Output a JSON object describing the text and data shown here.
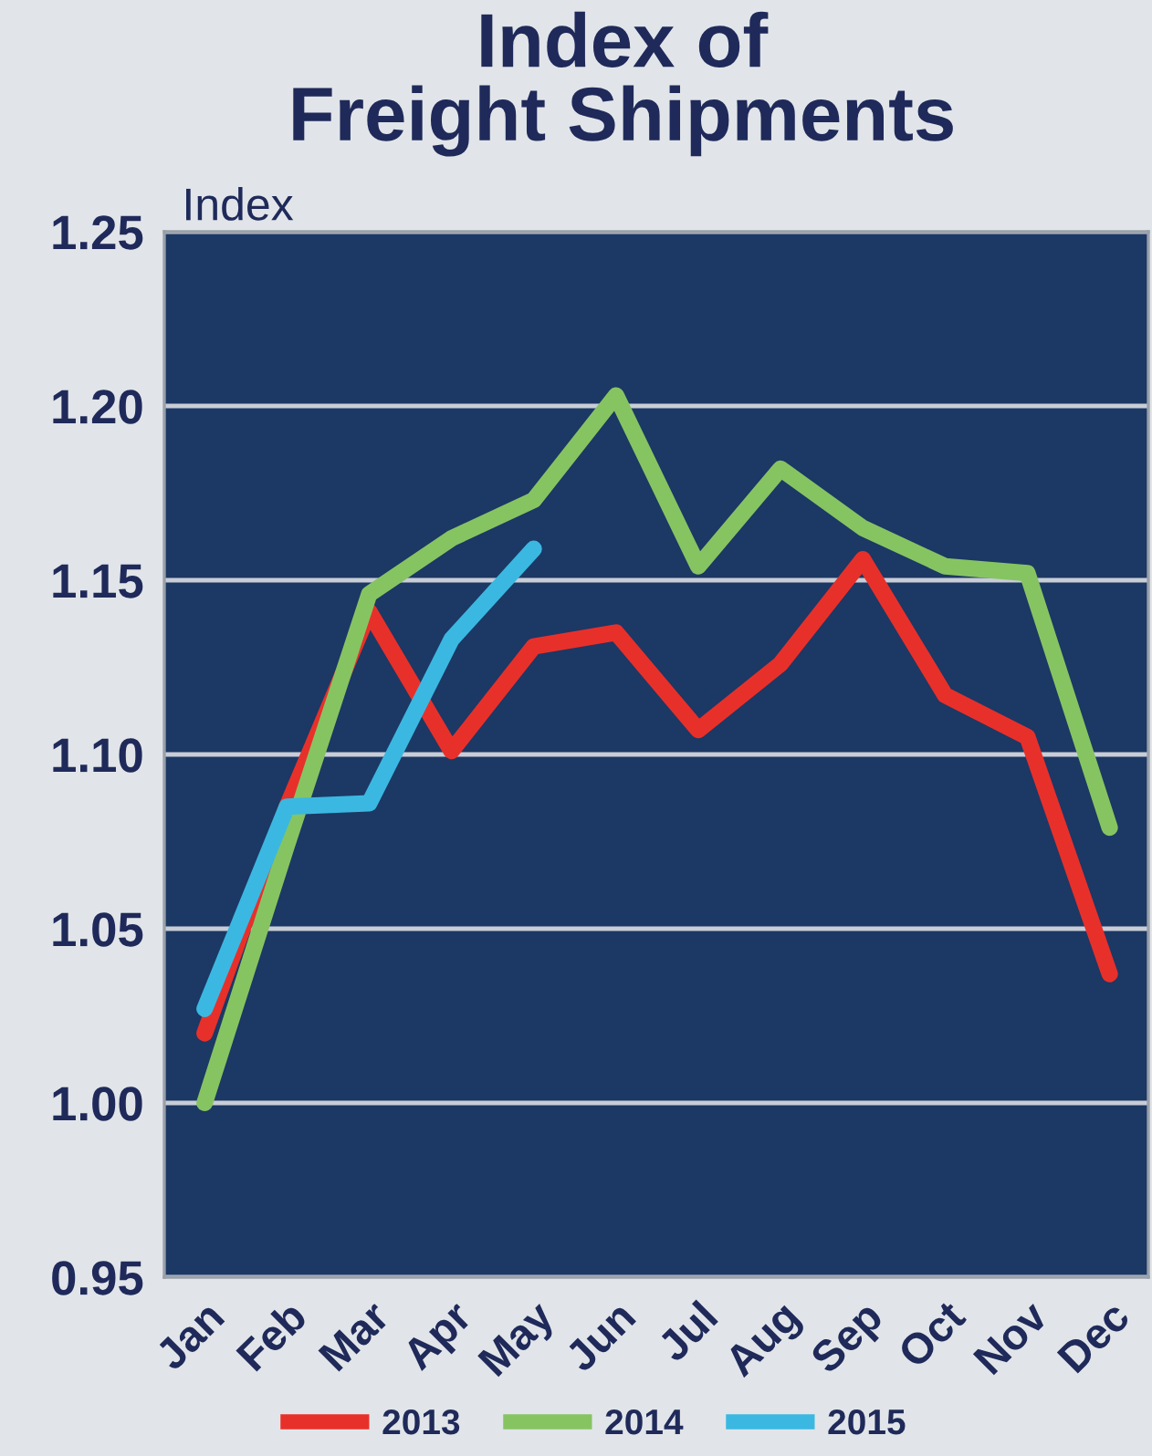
{
  "chart_data": {
    "type": "line",
    "title": "Index of\nFreight Shipments",
    "ylabel": "Index",
    "categories": [
      "Jan",
      "Feb",
      "Mar",
      "Apr",
      "May",
      "Jun",
      "Jul",
      "Aug",
      "Sep",
      "Oct",
      "Nov",
      "Dec"
    ],
    "series": [
      {
        "name": "2013",
        "color": "#e8302a",
        "values": [
          1.02,
          1.085,
          1.141,
          1.101,
          1.131,
          1.135,
          1.107,
          1.126,
          1.156,
          1.117,
          1.105,
          1.037
        ]
      },
      {
        "name": "2014",
        "color": "#86c462",
        "values": [
          1.0,
          1.074,
          1.146,
          1.162,
          1.173,
          1.203,
          1.154,
          1.182,
          1.165,
          1.154,
          1.152,
          1.079
        ]
      },
      {
        "name": "2015",
        "color": "#3ab8e2",
        "values": [
          1.027,
          1.085,
          1.086,
          1.133,
          1.159,
          null,
          null,
          null,
          null,
          null,
          null,
          null
        ]
      }
    ],
    "ylim": [
      0.95,
      1.25
    ],
    "yticks": [
      {
        "value": 0.95,
        "label": "0.95"
      },
      {
        "value": 1.0,
        "label": "1.00"
      },
      {
        "value": 1.05,
        "label": "1.05"
      },
      {
        "value": 1.1,
        "label": "1.10"
      },
      {
        "value": 1.15,
        "label": "1.15"
      },
      {
        "value": 1.2,
        "label": "1.20"
      },
      {
        "value": 1.25,
        "label": "1.25"
      }
    ],
    "grid": "y",
    "legend": "bottom",
    "marker": "none",
    "line_style": "solid"
  }
}
